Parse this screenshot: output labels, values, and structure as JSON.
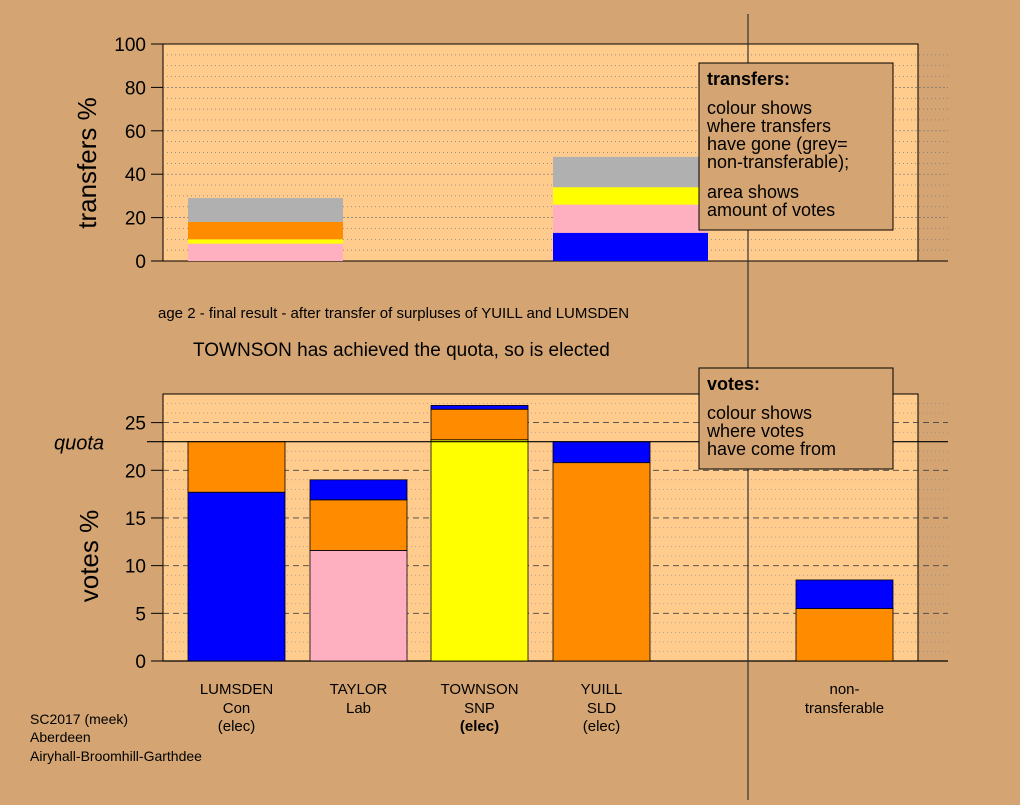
{
  "colors": {
    "page_bg": "#d4a572",
    "plot_bg": "#ffcc8e",
    "Con": "#0000ff",
    "Lab": "#ffb0c0",
    "SNP": "#ffff00",
    "SLD": "#ff8c00",
    "nontransferable": "#b0b0b0"
  },
  "stage_text": "age 2 - final result - after transfer of surpluses of YUILL and LUMSDEN",
  "status_text": "TOWNSON has achieved the quota, so is elected",
  "footer": {
    "line1": "SC2017 (meek)",
    "line2": "Aberdeen",
    "line3": "Airyhall-Broomhill-Garthdee"
  },
  "transfers_legend": {
    "title": "transfers:",
    "lines": [
      "colour shows",
      "where transfers",
      "have gone (grey=",
      "non-transferable);",
      "area shows",
      "amount of votes"
    ]
  },
  "votes_legend": {
    "title": "votes:",
    "lines": [
      "colour shows",
      "where votes",
      "have come from"
    ]
  },
  "chart_data": [
    {
      "type": "bar",
      "stacked": true,
      "ylabel": "transfers %",
      "ylim": [
        0,
        100
      ],
      "yticks": [
        0,
        20,
        40,
        60,
        80,
        100
      ],
      "grid": true,
      "bars": [
        {
          "from": "LUMSDEN",
          "slot": 0,
          "segments": [
            {
              "party": "Lab",
              "value": 8
            },
            {
              "party": "SNP",
              "value": 2
            },
            {
              "party": "SLD",
              "value": 8
            },
            {
              "party": "nontransferable",
              "value": 11
            }
          ]
        },
        {
          "from": "YUILL",
          "slot": 3,
          "segments": [
            {
              "party": "Con",
              "value": 13
            },
            {
              "party": "Lab",
              "value": 13
            },
            {
              "party": "SNP",
              "value": 8
            },
            {
              "party": "nontransferable",
              "value": 14
            }
          ]
        }
      ]
    },
    {
      "type": "bar",
      "stacked": true,
      "ylabel": "votes %",
      "ylim": [
        0,
        28
      ],
      "yticks": [
        0,
        5,
        10,
        15,
        20,
        25
      ],
      "quota": 23,
      "quota_label": "quota",
      "grid": true,
      "candidates": [
        {
          "name": "LUMSDEN",
          "party": "Con",
          "status": "(elec)",
          "status_bold": false,
          "slot": 0,
          "segments": [
            {
              "party": "Con",
              "value": 17.7
            },
            {
              "party": "SLD",
              "value": 5.3
            }
          ]
        },
        {
          "name": "TAYLOR",
          "party": "Lab",
          "status": "",
          "status_bold": false,
          "slot": 1,
          "segments": [
            {
              "party": "Lab",
              "value": 11.6
            },
            {
              "party": "SLD",
              "value": 5.3
            },
            {
              "party": "Con",
              "value": 2.1
            }
          ]
        },
        {
          "name": "TOWNSON",
          "party": "SNP",
          "status": "(elec)",
          "status_bold": true,
          "slot": 2,
          "segments": [
            {
              "party": "SNP",
              "value": 23.2
            },
            {
              "party": "SLD",
              "value": 3.2
            },
            {
              "party": "Con",
              "value": 0.4
            }
          ]
        },
        {
          "name": "YUILL",
          "party": "SLD",
          "status": "(elec)",
          "status_bold": false,
          "slot": 3,
          "segments": [
            {
              "party": "SLD",
              "value": 20.8
            },
            {
              "party": "Con",
              "value": 2.2
            }
          ]
        },
        {
          "name": "non-",
          "party": "transferable",
          "status": "",
          "status_bold": false,
          "slot": 5,
          "segments": [
            {
              "party": "SLD",
              "value": 5.5
            },
            {
              "party": "Con",
              "value": 3.0
            }
          ]
        }
      ]
    }
  ]
}
